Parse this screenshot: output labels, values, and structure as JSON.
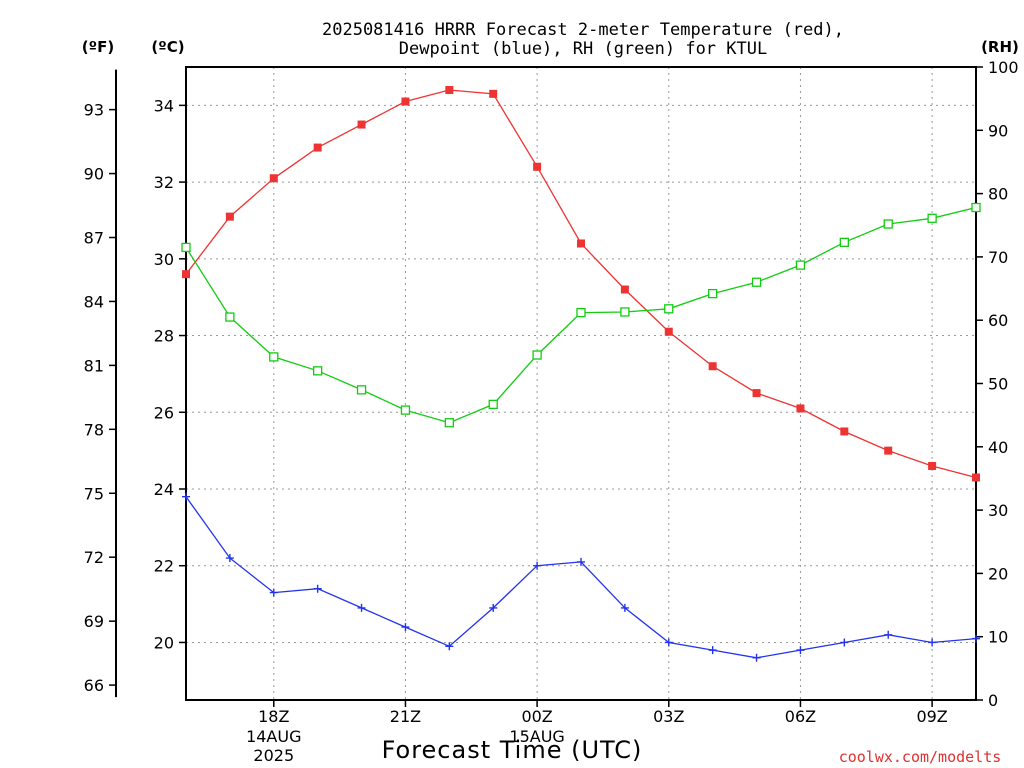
{
  "colors": {
    "temperature": "#ee3333",
    "dewpoint": "#2233ee",
    "rh": "#11cc11"
  },
  "chart_data": {
    "type": "line",
    "title_line1": "2025081416 HRRR Forecast 2-meter Temperature (red),",
    "title_line2": "Dewpoint (blue), RH (green) for KTUL",
    "xlabel": "Forecast Time (UTC)",
    "y_left_outer_unit": "(ºF)",
    "y_left_inner_unit": "(ºC)",
    "y_right_unit": "(RH)",
    "credit": "coolwx.com/modelts",
    "x": [
      "16Z",
      "17Z",
      "18Z",
      "19Z",
      "20Z",
      "21Z",
      "22Z",
      "23Z",
      "00Z",
      "01Z",
      "02Z",
      "03Z",
      "04Z",
      "05Z",
      "06Z",
      "07Z",
      "08Z",
      "09Z",
      "10Z"
    ],
    "x_ticks": [
      {
        "label": "18Z",
        "date": "14AUG",
        "year": "2025"
      },
      {
        "label": "21Z"
      },
      {
        "label": "00Z",
        "date": "15AUG"
      },
      {
        "label": "03Z"
      },
      {
        "label": "06Z"
      },
      {
        "label": "09Z"
      }
    ],
    "y_celsius_ticks": [
      20,
      22,
      24,
      26,
      28,
      30,
      32,
      34
    ],
    "y_fahrenheit_ticks": [
      66,
      69,
      72,
      75,
      78,
      81,
      84,
      87,
      90,
      93
    ],
    "y_rh_ticks": [
      0,
      10,
      20,
      30,
      40,
      50,
      60,
      70,
      80,
      90,
      100
    ],
    "ylim_celsius": [
      18.5,
      35.0
    ],
    "ylim_rh": [
      0,
      100
    ],
    "grid": true,
    "series": [
      {
        "name": "Temperature",
        "axis": "celsius",
        "marker": "filled-square",
        "values": [
          29.6,
          31.1,
          32.1,
          32.9,
          33.5,
          34.1,
          34.4,
          34.3,
          32.4,
          30.4,
          29.2,
          28.1,
          27.2,
          26.5,
          26.1,
          25.5,
          25.0,
          24.6,
          24.3
        ]
      },
      {
        "name": "Dewpoint",
        "axis": "celsius",
        "marker": "plus",
        "values": [
          23.8,
          22.2,
          21.3,
          21.4,
          20.9,
          20.4,
          19.9,
          20.9,
          22.0,
          22.1,
          20.9,
          20.0,
          19.8,
          19.6,
          19.8,
          20.0,
          20.2,
          20.0,
          20.1
        ]
      },
      {
        "name": "RH",
        "axis": "rh",
        "marker": "open-square",
        "values": [
          71.5,
          60.5,
          54.2,
          52.0,
          49.0,
          45.8,
          43.8,
          46.7,
          54.5,
          61.2,
          61.3,
          61.8,
          64.2,
          66.0,
          68.7,
          72.3,
          75.2,
          76.1,
          77.8
        ]
      }
    ]
  }
}
